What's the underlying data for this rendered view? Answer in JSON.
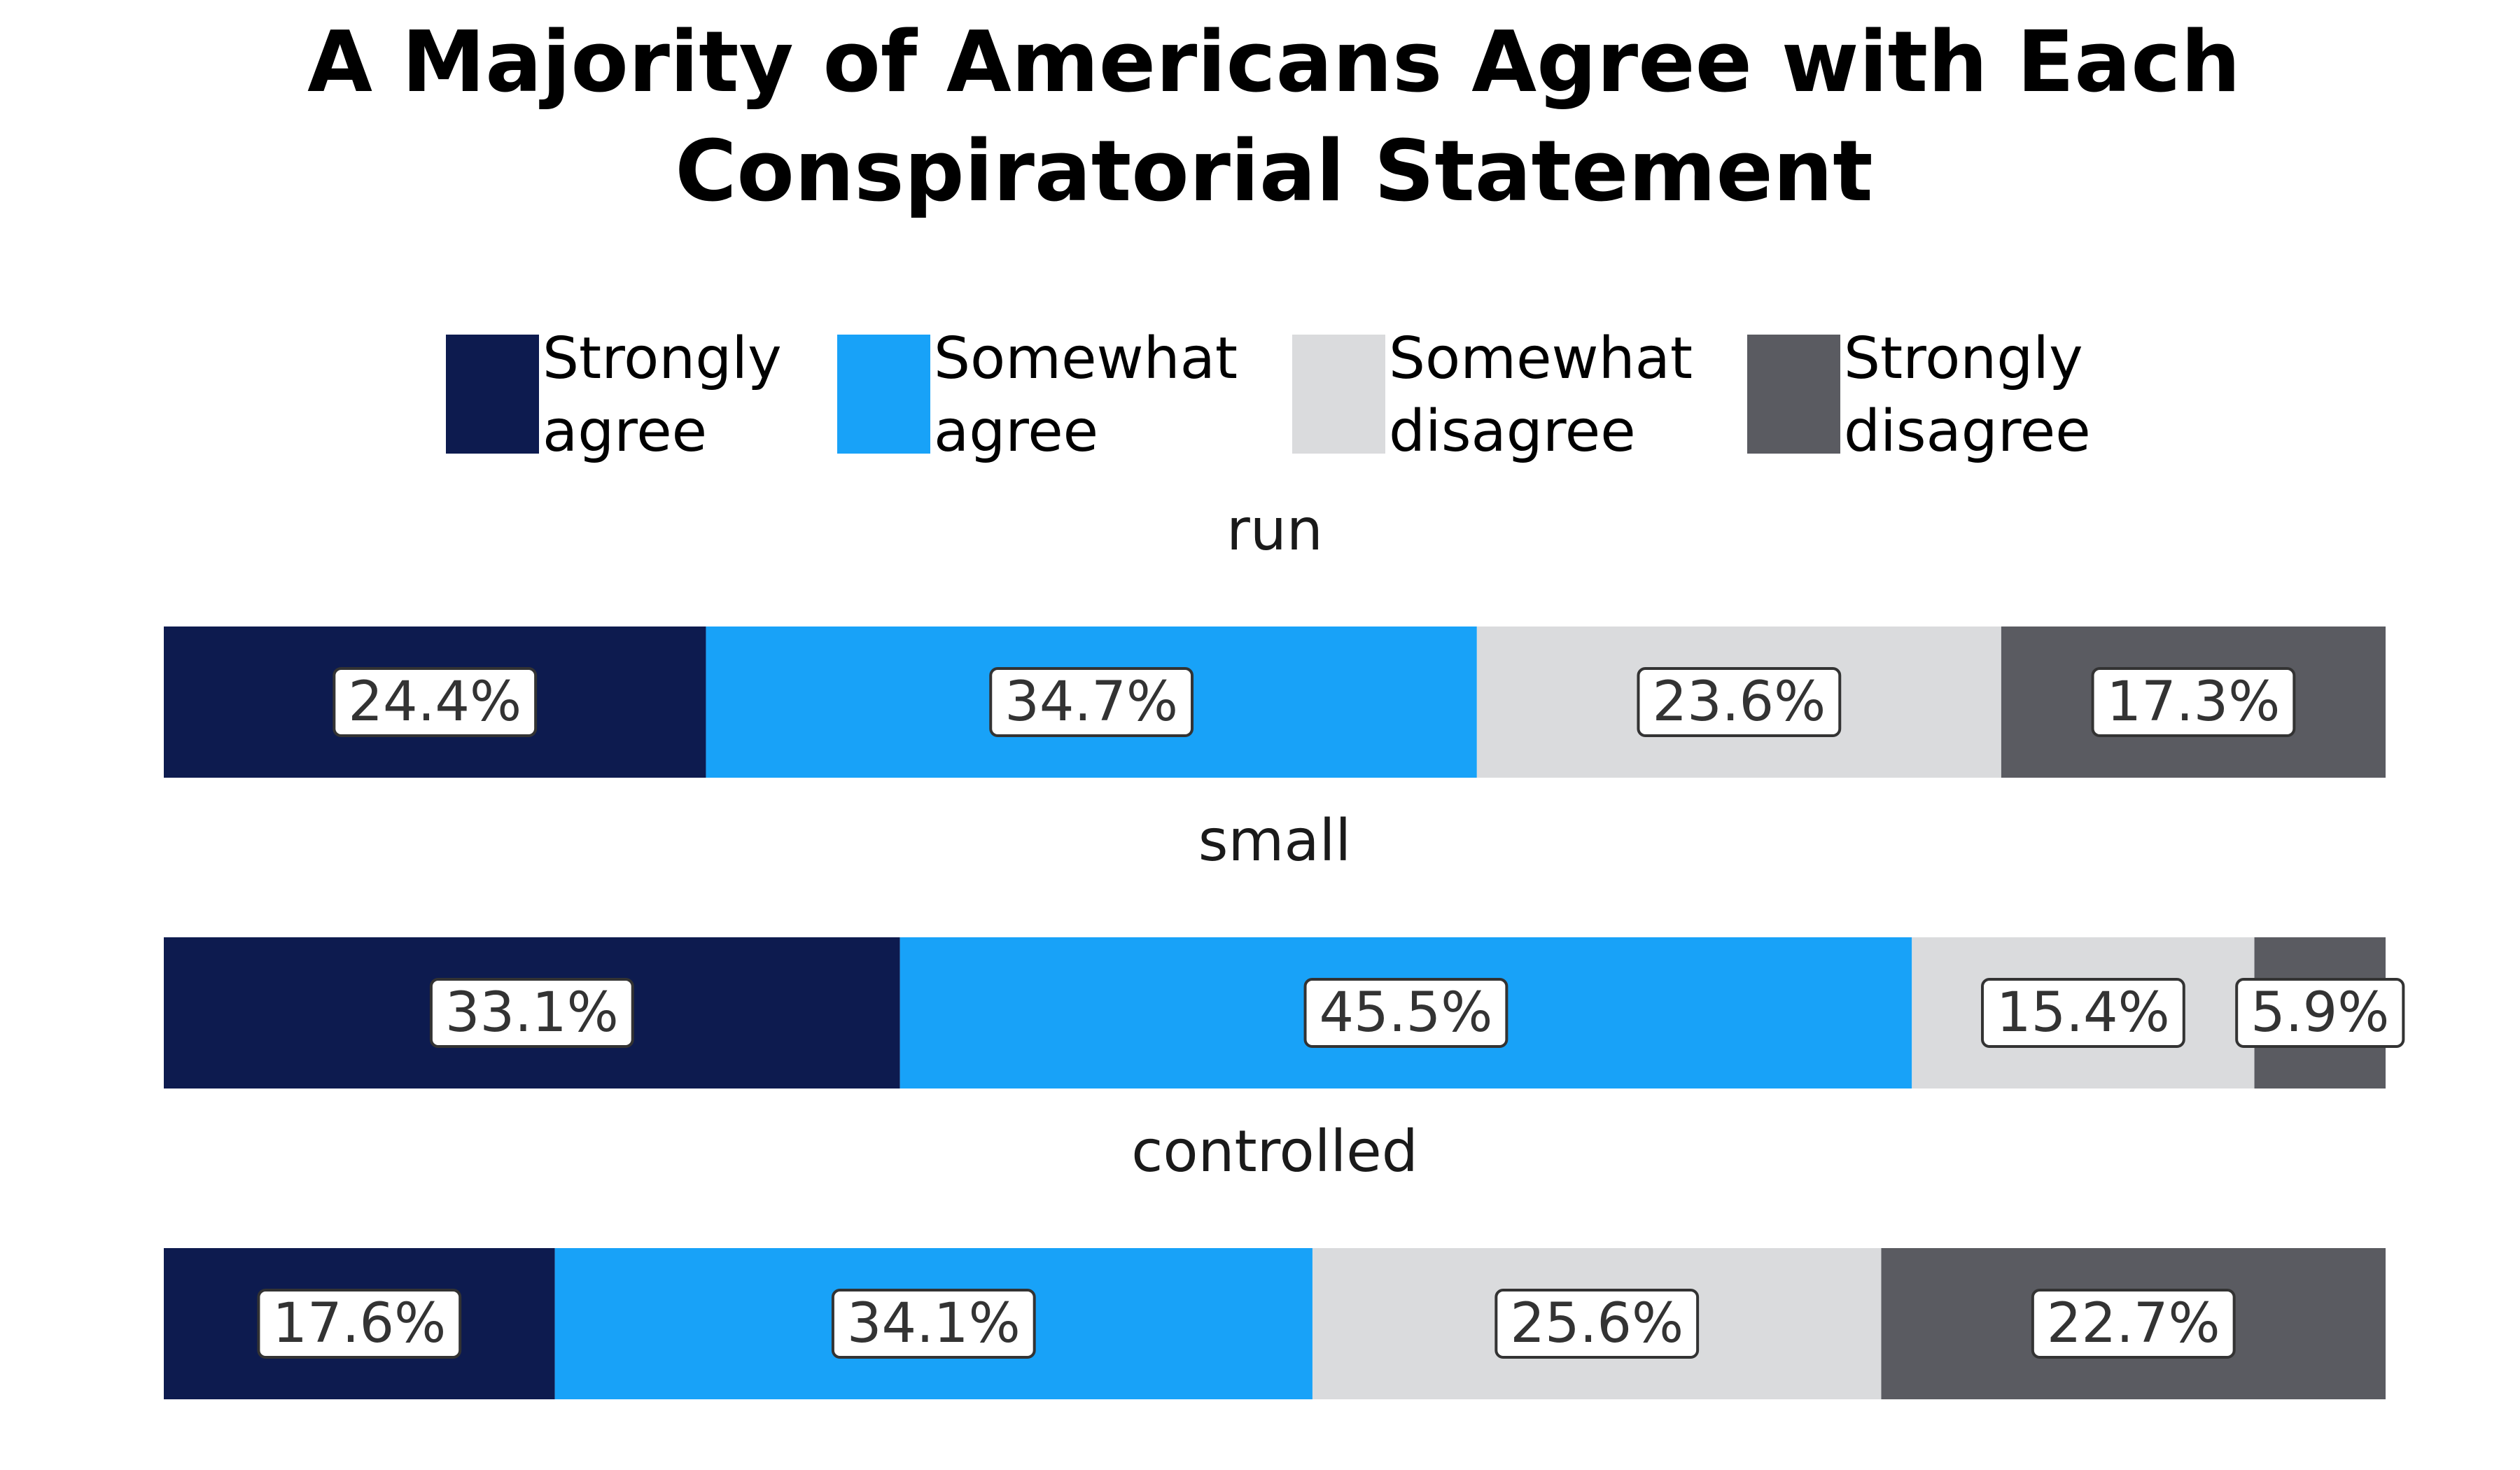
{
  "chart_data": {
    "type": "bar",
    "orientation": "horizontal-stacked-100",
    "title": "A Majority of Americans Agree with Each Conspiratorial Statement",
    "title_lines": [
      "A Majority of Americans Agree with Each",
      "Conspiratorial Statement"
    ],
    "legend_position": "top-center",
    "grid": false,
    "xlim": [
      0,
      100
    ],
    "series": [
      {
        "name": "Strongly agree",
        "name_lines": [
          "Strongly",
          "agree"
        ],
        "color": "#0d1b4f"
      },
      {
        "name": "Somewhat agree",
        "name_lines": [
          "Somewhat",
          "agree"
        ],
        "color": "#18a2f8"
      },
      {
        "name": "Somewhat disagree",
        "name_lines": [
          "Somewhat",
          "disagree"
        ],
        "color": "#dadbdd"
      },
      {
        "name": "Strongly disagree",
        "name_lines": [
          "Strongly",
          "disagree"
        ],
        "color": "#5a5b61"
      }
    ],
    "categories": [
      "run",
      "small",
      "controlled"
    ],
    "values": [
      [
        24.4,
        34.7,
        23.6,
        17.3
      ],
      [
        33.1,
        45.5,
        15.4,
        5.9
      ],
      [
        17.6,
        34.1,
        25.6,
        22.7
      ]
    ],
    "labels": [
      [
        "24.4%",
        "34.7%",
        "23.6%",
        "17.3%"
      ],
      [
        "33.1%",
        "45.5%",
        "15.4%",
        "5.9%"
      ],
      [
        "17.6%",
        "34.1%",
        "25.6%",
        "22.7%"
      ]
    ]
  }
}
